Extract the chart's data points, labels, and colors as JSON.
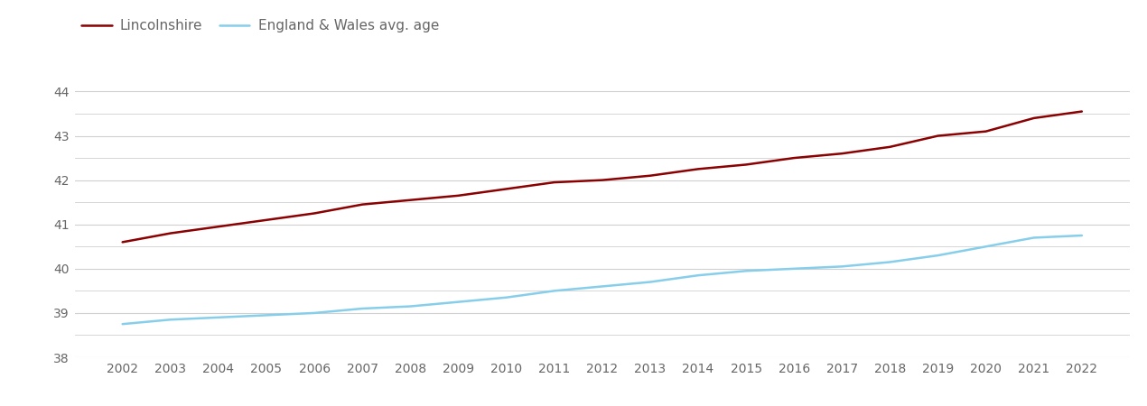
{
  "years": [
    2002,
    2003,
    2004,
    2005,
    2006,
    2007,
    2008,
    2009,
    2010,
    2011,
    2012,
    2013,
    2014,
    2015,
    2016,
    2017,
    2018,
    2019,
    2020,
    2021,
    2022
  ],
  "lincolnshire": [
    40.6,
    40.8,
    40.95,
    41.1,
    41.25,
    41.45,
    41.55,
    41.65,
    41.8,
    41.95,
    42.0,
    42.1,
    42.25,
    42.35,
    42.5,
    42.6,
    42.75,
    43.0,
    43.1,
    43.4,
    43.55
  ],
  "england_wales": [
    38.75,
    38.85,
    38.9,
    38.95,
    39.0,
    39.1,
    39.15,
    39.25,
    39.35,
    39.5,
    39.6,
    39.7,
    39.85,
    39.95,
    40.0,
    40.05,
    40.15,
    40.3,
    40.5,
    40.7,
    40.75
  ],
  "lincs_color": "#8b0000",
  "ew_color": "#87ceeb",
  "lincs_label": "Lincolnshire",
  "ew_label": "England & Wales avg. age",
  "ylim": [
    38,
    44.6
  ],
  "yticks": [
    38,
    39,
    40,
    41,
    42,
    43,
    44
  ],
  "background_color": "#ffffff",
  "grid_color": "#d0d0d0",
  "line_width": 1.8,
  "legend_fontsize": 11,
  "tick_fontsize": 10,
  "tick_color": "#666666"
}
